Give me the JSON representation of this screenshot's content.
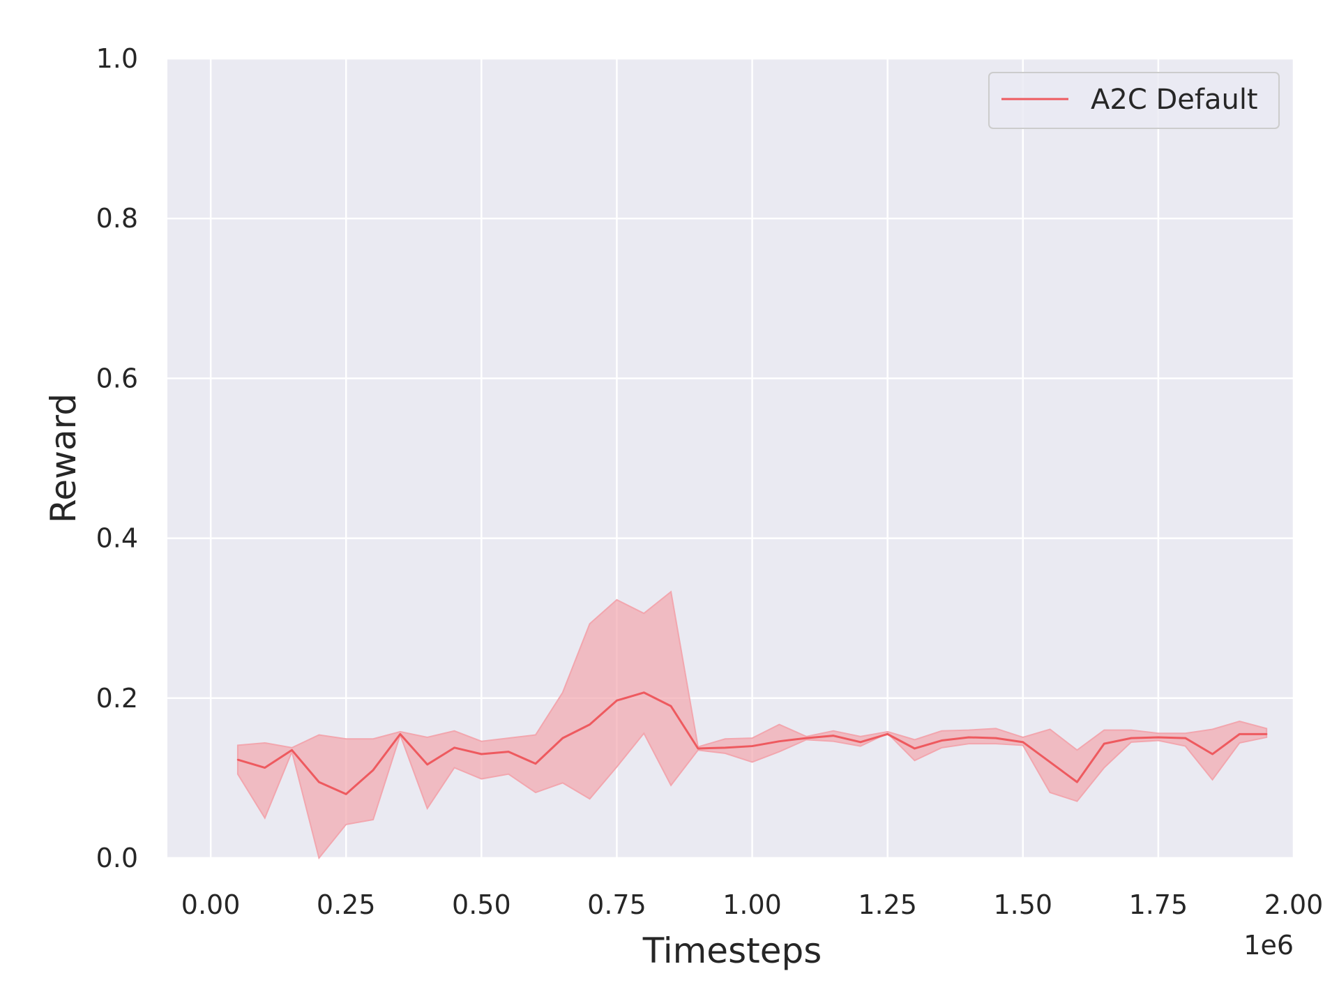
{
  "chart_data": {
    "type": "line",
    "title": "",
    "xlabel": "Timesteps",
    "ylabel": "Reward",
    "x_offset_label": "1e6",
    "xlim": [
      -0.08,
      2.0
    ],
    "ylim": [
      0.0,
      1.0
    ],
    "xticks": [
      0.0,
      0.25,
      0.5,
      0.75,
      1.0,
      1.25,
      1.5,
      1.75,
      2.0
    ],
    "xtick_labels": [
      "0.00",
      "0.25",
      "0.50",
      "0.75",
      "1.00",
      "1.25",
      "1.50",
      "1.75",
      "2.00"
    ],
    "yticks": [
      0.0,
      0.2,
      0.4,
      0.6,
      0.8,
      1.0
    ],
    "ytick_labels": [
      "0.0",
      "0.2",
      "0.4",
      "0.6",
      "0.8",
      "1.0"
    ],
    "grid": true,
    "legend_position": "top-right",
    "background_color": "#eaeaf2",
    "series": [
      {
        "name": "A2C Default",
        "color": "#ee5a5f",
        "band_color": "#f2a6ae",
        "x": [
          0.05,
          0.1,
          0.15,
          0.2,
          0.25,
          0.3,
          0.35,
          0.4,
          0.45,
          0.5,
          0.55,
          0.6,
          0.65,
          0.7,
          0.75,
          0.8,
          0.85,
          0.9,
          0.95,
          1.0,
          1.05,
          1.1,
          1.15,
          1.2,
          1.25,
          1.3,
          1.35,
          1.4,
          1.45,
          1.5,
          1.55,
          1.6,
          1.65,
          1.7,
          1.75,
          1.8,
          1.85,
          1.9,
          1.95
        ],
        "values": [
          0.123,
          0.113,
          0.135,
          0.095,
          0.08,
          0.11,
          0.155,
          0.117,
          0.138,
          0.13,
          0.133,
          0.118,
          0.15,
          0.167,
          0.197,
          0.207,
          0.19,
          0.137,
          0.138,
          0.14,
          0.146,
          0.15,
          0.153,
          0.145,
          0.155,
          0.137,
          0.147,
          0.151,
          0.15,
          0.145,
          0.12,
          0.095,
          0.143,
          0.15,
          0.151,
          0.15,
          0.13,
          0.155,
          0.155
        ],
        "upper": [
          0.141,
          0.144,
          0.138,
          0.154,
          0.149,
          0.149,
          0.158,
          0.151,
          0.159,
          0.146,
          0.15,
          0.154,
          0.207,
          0.293,
          0.323,
          0.306,
          0.333,
          0.139,
          0.149,
          0.15,
          0.167,
          0.152,
          0.159,
          0.152,
          0.158,
          0.148,
          0.159,
          0.16,
          0.162,
          0.151,
          0.161,
          0.135,
          0.16,
          0.16,
          0.156,
          0.156,
          0.161,
          0.171,
          0.162
        ],
        "lower": [
          0.105,
          0.05,
          0.133,
          0.0,
          0.042,
          0.048,
          0.154,
          0.062,
          0.113,
          0.099,
          0.105,
          0.082,
          0.094,
          0.074,
          0.114,
          0.156,
          0.091,
          0.135,
          0.131,
          0.12,
          0.133,
          0.148,
          0.146,
          0.14,
          0.156,
          0.122,
          0.138,
          0.143,
          0.143,
          0.141,
          0.082,
          0.071,
          0.113,
          0.145,
          0.147,
          0.14,
          0.098,
          0.144,
          0.151
        ]
      }
    ]
  }
}
